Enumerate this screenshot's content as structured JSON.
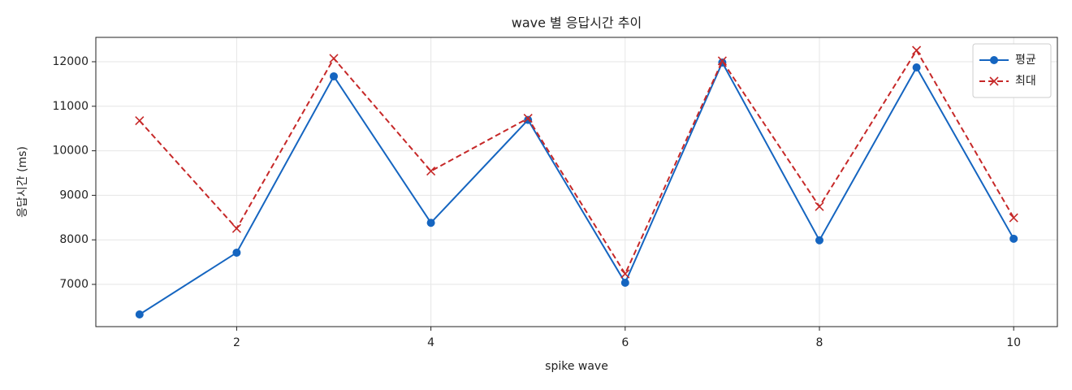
{
  "chart_data": {
    "type": "line",
    "title": "wave 별 응답시간 추이",
    "xlabel": "spike wave",
    "ylabel": "응답시간 (ms)",
    "x": [
      1,
      2,
      3,
      4,
      5,
      6,
      7,
      8,
      9,
      10
    ],
    "series": [
      {
        "name": "평균",
        "color": "#1565c0",
        "marker": "circle",
        "dash": false,
        "values": [
          6325,
          7712,
          11672,
          8383,
          10693,
          7036,
          11982,
          7990,
          11872,
          8025
        ]
      },
      {
        "name": "최대",
        "color": "#c62828",
        "marker": "x",
        "dash": true,
        "values": [
          10675,
          8255,
          12073,
          9544,
          10730,
          7237,
          12018,
          8748,
          12255,
          8496
        ]
      }
    ],
    "xlim": [
      0.55,
      10.45
    ],
    "ylim": [
      6051,
      12547
    ],
    "xticks": [
      2,
      4,
      6,
      8,
      10
    ],
    "yticks": [
      7000,
      8000,
      9000,
      10000,
      11000,
      12000
    ],
    "grid": true,
    "legend": "upper right"
  }
}
